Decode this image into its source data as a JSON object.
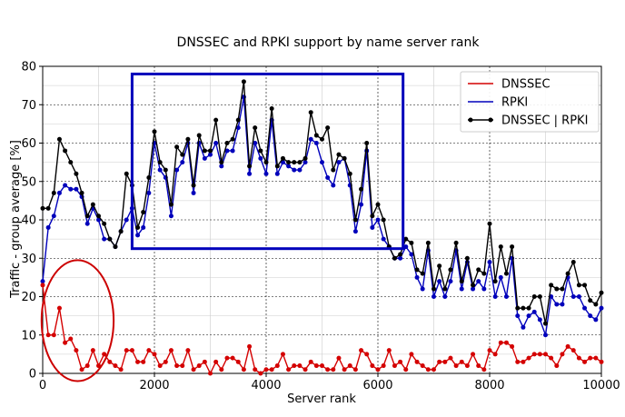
{
  "chart_data": {
    "type": "line",
    "title": "DNSSEC and RPKI support by name server rank",
    "xlabel": "Server rank",
    "ylabel": "Traffic - group average [%]",
    "xlim": [
      0,
      10000
    ],
    "ylim": [
      0,
      80
    ],
    "xticks": [
      0,
      2000,
      4000,
      6000,
      8000,
      10000
    ],
    "yticks": [
      0,
      10,
      20,
      30,
      40,
      50,
      60,
      70,
      80
    ],
    "grid": true,
    "legend_position": "top-right",
    "x": [
      0,
      100,
      200,
      300,
      400,
      500,
      600,
      700,
      800,
      900,
      1000,
      1100,
      1200,
      1300,
      1400,
      1500,
      1600,
      1700,
      1800,
      1900,
      2000,
      2100,
      2200,
      2300,
      2400,
      2500,
      2600,
      2700,
      2800,
      2900,
      3000,
      3100,
      3200,
      3300,
      3400,
      3500,
      3600,
      3700,
      3800,
      3900,
      4000,
      4100,
      4200,
      4300,
      4400,
      4500,
      4600,
      4700,
      4800,
      4900,
      5000,
      5100,
      5200,
      5300,
      5400,
      5500,
      5600,
      5700,
      5800,
      5900,
      6000,
      6100,
      6200,
      6300,
      6400,
      6500,
      6600,
      6700,
      6800,
      6900,
      7000,
      7100,
      7200,
      7300,
      7400,
      7500,
      7600,
      7700,
      7800,
      7900,
      8000,
      8100,
      8200,
      8300,
      8400,
      8500,
      8600,
      8700,
      8800,
      8900,
      9000,
      9100,
      9200,
      9300,
      9400,
      9500,
      9600,
      9700,
      9800,
      9900,
      10000
    ],
    "series": [
      {
        "name": "DNSSEC",
        "color": "#d40000",
        "marker": true,
        "values": [
          23,
          10,
          10,
          17,
          8,
          9,
          6,
          1,
          2,
          6,
          2,
          5,
          3,
          2,
          1,
          6,
          6,
          3,
          3,
          6,
          5,
          2,
          3,
          6,
          2,
          2,
          6,
          1,
          2,
          3,
          0,
          3,
          1,
          4,
          4,
          3,
          1,
          7,
          1,
          0,
          1,
          1,
          2,
          5,
          1,
          2,
          2,
          1,
          3,
          2,
          2,
          1,
          1,
          4,
          1,
          2,
          1,
          6,
          5,
          2,
          1,
          2,
          6,
          2,
          3,
          1,
          5,
          3,
          2,
          1,
          1,
          3,
          3,
          4,
          2,
          3,
          2,
          5,
          2,
          1,
          6,
          5,
          8,
          8,
          7,
          3,
          3,
          4,
          5,
          5,
          5,
          4,
          2,
          5,
          7,
          6,
          4,
          3,
          4,
          4,
          3
        ]
      },
      {
        "name": "RPKI",
        "color": "#0000bb",
        "marker": true,
        "values": [
          24,
          38,
          41,
          47,
          49,
          48,
          48,
          46,
          39,
          43,
          40,
          35,
          35,
          33,
          37,
          40,
          43,
          36,
          38,
          47,
          60,
          53,
          51,
          41,
          53,
          55,
          60,
          47,
          60,
          56,
          57,
          60,
          54,
          58,
          58,
          64,
          72,
          52,
          60,
          56,
          52,
          66,
          52,
          55,
          54,
          53,
          53,
          55,
          61,
          60,
          55,
          51,
          49,
          55,
          56,
          49,
          37,
          44,
          58,
          38,
          40,
          35,
          33,
          30,
          30,
          33,
          31,
          25,
          22,
          32,
          20,
          24,
          20,
          24,
          32,
          22,
          29,
          22,
          24,
          22,
          29,
          20,
          25,
          20,
          30,
          15,
          12,
          15,
          16,
          14,
          10,
          20,
          18,
          18,
          25,
          20,
          20,
          17,
          15,
          14,
          17
        ]
      },
      {
        "name": "DNSSEC | RPKI",
        "color": "#000000",
        "marker": true,
        "values": [
          43,
          43,
          47,
          61,
          58,
          55,
          52,
          47,
          41,
          44,
          41,
          39,
          35,
          33,
          37,
          52,
          49,
          38,
          42,
          51,
          63,
          55,
          53,
          44,
          59,
          57,
          61,
          49,
          62,
          58,
          58,
          66,
          55,
          60,
          61,
          66,
          76,
          54,
          64,
          58,
          55,
          69,
          54,
          56,
          55,
          55,
          55,
          56,
          68,
          62,
          61,
          64,
          53,
          57,
          56,
          52,
          40,
          48,
          60,
          41,
          44,
          40,
          33,
          30,
          31,
          35,
          34,
          27,
          26,
          34,
          22,
          28,
          22,
          27,
          34,
          24,
          30,
          23,
          27,
          26,
          39,
          24,
          33,
          26,
          33,
          17,
          17,
          17,
          20,
          20,
          13,
          23,
          22,
          22,
          26,
          29,
          23,
          23,
          19,
          18,
          21
        ]
      }
    ],
    "annotations": [
      {
        "type": "rectangle",
        "color": "#0000bb",
        "x_range": [
          1600,
          6450
        ],
        "y_range": [
          32.5,
          78
        ]
      },
      {
        "type": "ellipse",
        "color": "#cc0000",
        "x_range": [
          -20,
          1270
        ],
        "y_range": [
          -2,
          29.5
        ]
      }
    ]
  }
}
